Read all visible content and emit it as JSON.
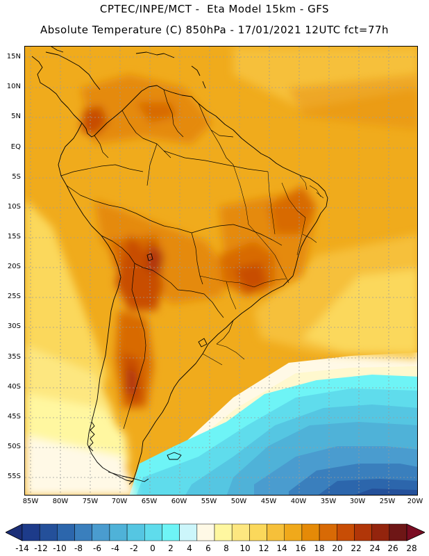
{
  "header": {
    "line1": "CPTEC/INPE/MCT -  Eta Model 15km - GFS",
    "line2": "Absolute Temperature (C) 850hPa - 17/01/2021 12UTC fct=77h"
  },
  "map": {
    "lat_labels": [
      "15N",
      "10N",
      "5N",
      "EQ",
      "5S",
      "10S",
      "15S",
      "20S",
      "25S",
      "30S",
      "35S",
      "40S",
      "45S",
      "50S",
      "55S"
    ],
    "lon_labels": [
      "85W",
      "80W",
      "75W",
      "70W",
      "65W",
      "60W",
      "55W",
      "50W",
      "45W",
      "40W",
      "35W",
      "30W",
      "25W",
      "20W"
    ]
  },
  "colorbar": {
    "labels": [
      "-14",
      "-12",
      "-10",
      "-8",
      "-6",
      "-4",
      "-2",
      "0",
      "2",
      "4",
      "6",
      "8",
      "10",
      "12",
      "14",
      "16",
      "18",
      "20",
      "22",
      "24",
      "26",
      "28"
    ],
    "colors": [
      "#1d3b8a",
      "#24509a",
      "#2c66ac",
      "#3a7fbd",
      "#4a9ccf",
      "#4fb2d8",
      "#55c6e2",
      "#5fdcec",
      "#6ef4f6",
      "#ccf6fb",
      "#fff9e6",
      "#fff7a0",
      "#fde780",
      "#fbd85b",
      "#f6c03a",
      "#f0a91b",
      "#e58a07",
      "#d86a05",
      "#c84d05",
      "#b13608",
      "#93240d",
      "#6e1616"
    ],
    "under_color": "#1b2e77",
    "over_color": "#7a0c22"
  }
}
